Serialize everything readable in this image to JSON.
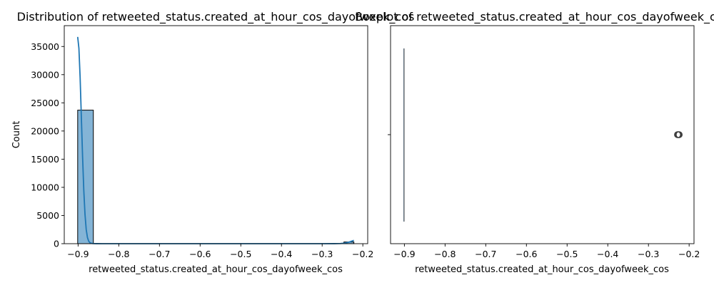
{
  "chart_data": [
    {
      "type": "histogram",
      "title": "Distribution of retweeted_status.created_at_hour_cos_dayofweek_cos",
      "xlabel": "retweeted_status.created_at_hour_cos_dayofweek_cos",
      "ylabel": "Count",
      "xlim": [
        -0.934,
        -0.188
      ],
      "ylim": [
        0,
        38700
      ],
      "xticks": [
        -0.9,
        -0.8,
        -0.7,
        -0.6,
        -0.5,
        -0.4,
        -0.3,
        -0.2
      ],
      "xtick_labels": [
        "−0.9",
        "−0.8",
        "−0.7",
        "−0.6",
        "−0.5",
        "−0.4",
        "−0.3",
        "−0.2"
      ],
      "yticks": [
        0,
        5000,
        10000,
        15000,
        20000,
        25000,
        30000,
        35000
      ],
      "ytick_labels": [
        "0",
        "5000",
        "10000",
        "15000",
        "20000",
        "25000",
        "30000",
        "35000"
      ],
      "bins": [
        {
          "x0": -0.901,
          "x1": -0.8625,
          "count": 23700
        },
        {
          "x0": -0.8625,
          "x1": -0.824,
          "count": 0
        },
        {
          "x0": -0.824,
          "x1": -0.7855,
          "count": 0
        },
        {
          "x0": -0.7855,
          "x1": -0.747,
          "count": 0
        },
        {
          "x0": -0.747,
          "x1": -0.7085,
          "count": 0
        },
        {
          "x0": -0.7085,
          "x1": -0.67,
          "count": 0
        },
        {
          "x0": -0.67,
          "x1": -0.6315,
          "count": 0
        },
        {
          "x0": -0.6315,
          "x1": -0.593,
          "count": 0
        },
        {
          "x0": -0.593,
          "x1": -0.5545,
          "count": 0
        },
        {
          "x0": -0.5545,
          "x1": -0.516,
          "count": 0
        },
        {
          "x0": -0.516,
          "x1": -0.4775,
          "count": 0
        },
        {
          "x0": -0.4775,
          "x1": -0.439,
          "count": 0
        },
        {
          "x0": -0.439,
          "x1": -0.4005,
          "count": 0
        },
        {
          "x0": -0.4005,
          "x1": -0.362,
          "count": 0
        },
        {
          "x0": -0.362,
          "x1": -0.3235,
          "count": 0
        },
        {
          "x0": -0.3235,
          "x1": -0.285,
          "count": 0
        },
        {
          "x0": -0.285,
          "x1": -0.2465,
          "count": 0
        },
        {
          "x0": -0.2465,
          "x1": -0.222,
          "count": 300
        }
      ],
      "kde": {
        "x": [
          -0.901,
          -0.898,
          -0.895,
          -0.892,
          -0.889,
          -0.886,
          -0.883,
          -0.88,
          -0.877,
          -0.874,
          -0.871,
          -0.868,
          -0.865,
          -0.862,
          -0.855,
          -0.84,
          -0.8,
          -0.7,
          -0.6,
          -0.5,
          -0.4,
          -0.3,
          -0.27,
          -0.255,
          -0.245,
          -0.235,
          -0.228,
          -0.222
        ],
        "y": [
          36700,
          34700,
          29500,
          22500,
          15500,
          9500,
          5200,
          2500,
          1100,
          450,
          180,
          80,
          40,
          20,
          8,
          2,
          0,
          0,
          0,
          0,
          0,
          0,
          5,
          30,
          90,
          250,
          430,
          580
        ]
      },
      "bar_color": "#1f77b4",
      "bar_alpha": 0.55,
      "line_color": "#1f77b4"
    },
    {
      "type": "boxplot",
      "title": "Boxplot of retweeted_status.created_at_hour_cos_dayofweek_cos",
      "xlabel": "retweeted_status.created_at_hour_cos_dayofweek_cos",
      "xlim": [
        -0.934,
        -0.188
      ],
      "xticks": [
        -0.9,
        -0.8,
        -0.7,
        -0.6,
        -0.5,
        -0.4,
        -0.3,
        -0.2
      ],
      "xtick_labels": [
        "−0.9",
        "−0.8",
        "−0.7",
        "−0.6",
        "−0.5",
        "−0.4",
        "−0.3",
        "−0.2"
      ],
      "q1": -0.901,
      "median": -0.901,
      "q3": -0.901,
      "whisker_low": -0.901,
      "whisker_high": -0.901,
      "outliers": [
        -0.2265
      ]
    }
  ]
}
